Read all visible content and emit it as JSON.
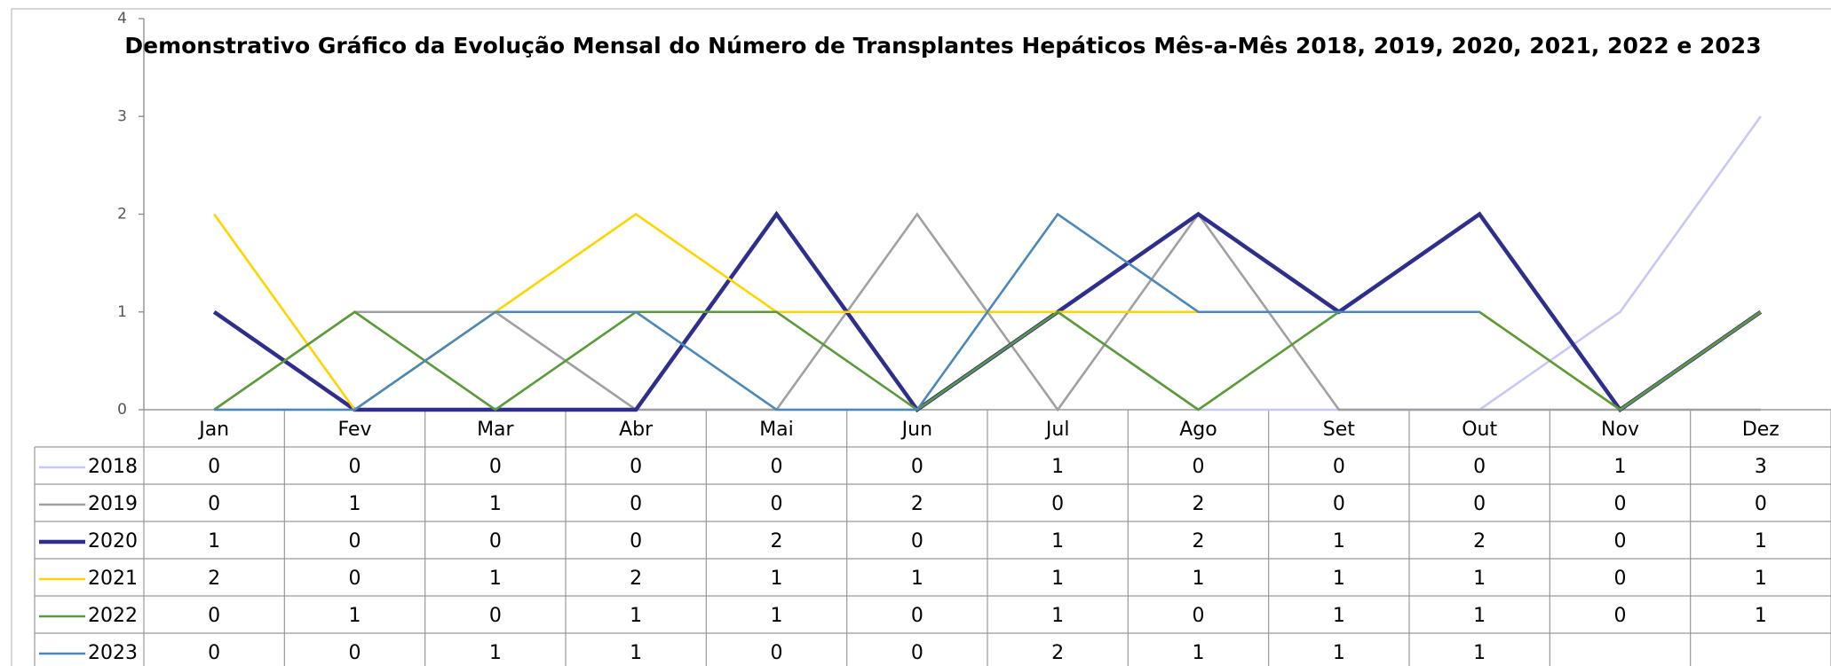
{
  "chart_data": {
    "type": "line",
    "title": "Demonstrativo Gráfico da Evolução Mensal do Número de Transplantes Hepáticos Mês-a-Mês 2018, 2019, 2020, 2021, 2022 e 2023",
    "categories": [
      "Jan",
      "Fev",
      "Mar",
      "Abr",
      "Mai",
      "Jun",
      "Jul",
      "Ago",
      "Set",
      "Out",
      "Nov",
      "Dez"
    ],
    "ylim": [
      0,
      4
    ],
    "yticks": [
      0,
      1,
      2,
      3,
      4
    ],
    "series": [
      {
        "name": "2018",
        "color": "#c8c8f4",
        "values": [
          0,
          0,
          0,
          0,
          0,
          0,
          1,
          0,
          0,
          0,
          1,
          3
        ]
      },
      {
        "name": "2019",
        "color": "#a0a0a0",
        "values": [
          0,
          1,
          1,
          0,
          0,
          2,
          0,
          2,
          0,
          0,
          0,
          0
        ]
      },
      {
        "name": "2020",
        "color": "#2e2e8c",
        "values": [
          1,
          0,
          0,
          0,
          2,
          0,
          1,
          2,
          1,
          2,
          0,
          1
        ]
      },
      {
        "name": "2021",
        "color": "#ffd400",
        "values": [
          2,
          0,
          1,
          2,
          1,
          1,
          1,
          1,
          1,
          1,
          0,
          1
        ]
      },
      {
        "name": "2022",
        "color": "#5b9a3a",
        "values": [
          0,
          1,
          0,
          1,
          1,
          0,
          1,
          0,
          1,
          1,
          0,
          1
        ]
      },
      {
        "name": "2023",
        "color": "#4b87b9",
        "values": [
          0,
          0,
          1,
          1,
          0,
          0,
          2,
          1,
          1,
          1,
          null,
          null
        ]
      }
    ]
  }
}
